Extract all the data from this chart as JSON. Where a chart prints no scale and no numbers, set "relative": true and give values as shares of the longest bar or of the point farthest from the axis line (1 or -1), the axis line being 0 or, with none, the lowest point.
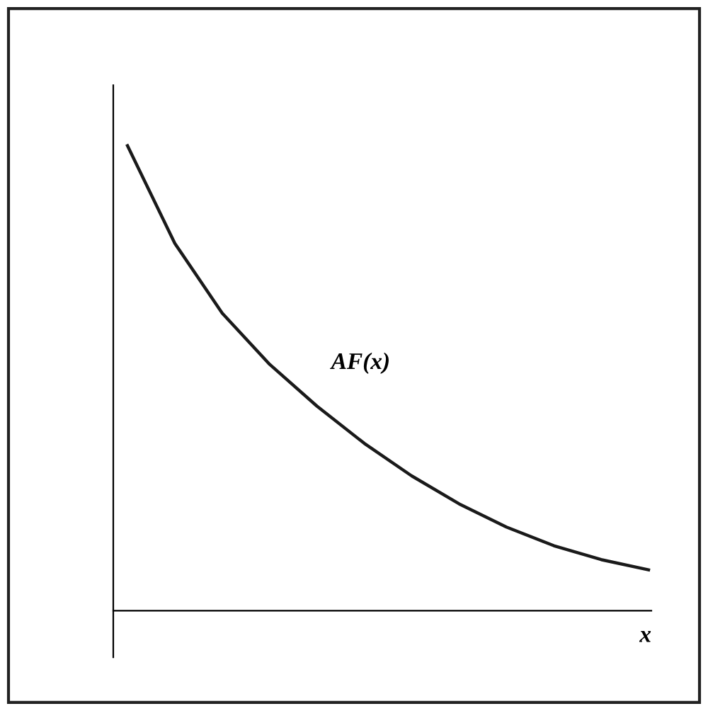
{
  "chart_data": {
    "type": "line",
    "relative": true,
    "xlabel": "x",
    "legend": false,
    "grid": false,
    "marker": "none",
    "line_style": "solid",
    "categories": [
      null,
      null,
      null,
      null,
      null,
      null,
      null,
      null,
      null,
      null,
      null,
      null
    ],
    "series": [
      {
        "name": "AF(x)",
        "color": "#1a1a1a",
        "values": [
          1,
          0.79,
          0.64,
          0.53,
          0.44,
          0.36,
          0.29,
          0.23,
          0.18,
          0.14,
          0.11,
          0.088
        ]
      }
    ]
  }
}
